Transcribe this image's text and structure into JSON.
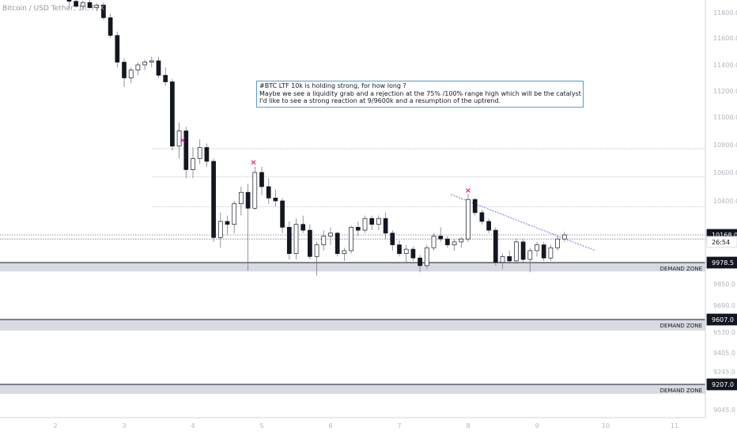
{
  "chart_data": {
    "type": "candlestick",
    "title": "Bitcoin / USD Tether, 1h, FTX",
    "x_axis_labels": [
      "2",
      "3",
      "4",
      "5",
      "6",
      "7",
      "8",
      "9",
      "10",
      "11"
    ],
    "y_axis_labels": [
      "11800.0",
      "11600.0",
      "11400.0",
      "11200.0",
      "11000.0",
      "10800.0",
      "10600.0",
      "10400.0",
      "9850.0",
      "9690.0",
      "9530.0",
      "9405.0",
      "9245.0",
      "9045.0"
    ],
    "ylim": [
      8960,
      11900
    ],
    "price_badges": [
      {
        "label": "10168.0",
        "value": 10168,
        "style": "dark"
      },
      {
        "label": "26:54",
        "value": 10120,
        "style": "light"
      },
      {
        "label": "9978.5",
        "value": 9978.5,
        "style": "dark"
      },
      {
        "label": "9607.0",
        "value": 9607,
        "style": "dark"
      },
      {
        "label": "9207.0",
        "value": 9207,
        "style": "dark"
      }
    ],
    "demand_zones": [
      {
        "label": "DEMAND ZONE",
        "top": 9978.5,
        "bottom": 9925
      },
      {
        "label": "DEMAND ZONE",
        "top": 9607,
        "bottom": 9540
      },
      {
        "label": "DEMAND ZONE",
        "top": 9207,
        "bottom": 9147
      }
    ],
    "horizontal_levels": [
      10771,
      10570,
      10361,
      10168,
      10140
    ],
    "x_markers": [
      {
        "x": 3.85,
        "price": 10835
      },
      {
        "x": 4.88,
        "price": 10675
      },
      {
        "x": 8.0,
        "price": 10475
      }
    ],
    "trendline": {
      "x1": 7.75,
      "y1": 10445,
      "x2": 9.85,
      "y2": 10060
    },
    "candles": [
      [
        2.2,
        11900,
        11930,
        11830,
        11890
      ],
      [
        2.3,
        11890,
        11910,
        11840,
        11850
      ],
      [
        2.4,
        11850,
        11895,
        11820,
        11880
      ],
      [
        2.5,
        11880,
        11905,
        11830,
        11840
      ],
      [
        2.6,
        11840,
        11875,
        11810,
        11860
      ],
      [
        2.7,
        11860,
        11880,
        11740,
        11760
      ],
      [
        2.8,
        11760,
        11790,
        11600,
        11620
      ],
      [
        2.9,
        11620,
        11650,
        11380,
        11420
      ],
      [
        3.0,
        11420,
        11450,
        11230,
        11300
      ],
      [
        3.1,
        11300,
        11380,
        11260,
        11360
      ],
      [
        3.2,
        11360,
        11420,
        11320,
        11400
      ],
      [
        3.3,
        11400,
        11440,
        11360,
        11420
      ],
      [
        3.4,
        11420,
        11460,
        11380,
        11430
      ],
      [
        3.5,
        11430,
        11460,
        11300,
        11320
      ],
      [
        3.6,
        11320,
        11380,
        11240,
        11270
      ],
      [
        3.7,
        11270,
        11290,
        10760,
        10790
      ],
      [
        3.8,
        10790,
        10960,
        10700,
        10900
      ],
      [
        3.9,
        10900,
        10930,
        10560,
        10620
      ],
      [
        4.0,
        10620,
        10780,
        10560,
        10700
      ],
      [
        4.1,
        10700,
        10840,
        10660,
        10780
      ],
      [
        4.2,
        10780,
        10810,
        10640,
        10680
      ],
      [
        4.3,
        10680,
        10700,
        10120,
        10150
      ],
      [
        4.4,
        10150,
        10320,
        10080,
        10260
      ],
      [
        4.5,
        10260,
        10300,
        10170,
        10240
      ],
      [
        4.6,
        10240,
        10400,
        10180,
        10380
      ],
      [
        4.7,
        10380,
        10500,
        10300,
        10460
      ],
      [
        4.8,
        10460,
        10520,
        9930,
        10350
      ],
      [
        4.9,
        10350,
        10640,
        10340,
        10600
      ],
      [
        5.0,
        10600,
        10640,
        10440,
        10500
      ],
      [
        5.1,
        10500,
        10560,
        10380,
        10420
      ],
      [
        5.2,
        10420,
        10480,
        10360,
        10400
      ],
      [
        5.3,
        10400,
        10420,
        10180,
        10220
      ],
      [
        5.4,
        10220,
        10260,
        10000,
        10040
      ],
      [
        5.5,
        10040,
        10280,
        10000,
        10240
      ],
      [
        5.6,
        10240,
        10300,
        10180,
        10200
      ],
      [
        5.7,
        10200,
        10240,
        10000,
        10020
      ],
      [
        5.8,
        10020,
        10120,
        9900,
        10100
      ],
      [
        5.9,
        10100,
        10200,
        10060,
        10160
      ],
      [
        6.0,
        10160,
        10220,
        10100,
        10180
      ],
      [
        6.1,
        10180,
        10190,
        10020,
        10040
      ],
      [
        6.2,
        10040,
        10080,
        9990,
        10060
      ],
      [
        6.3,
        10060,
        10230,
        10040,
        10220
      ],
      [
        6.4,
        10220,
        10260,
        10160,
        10200
      ],
      [
        6.5,
        10200,
        10300,
        10180,
        10280
      ],
      [
        6.6,
        10280,
        10300,
        10200,
        10240
      ],
      [
        6.7,
        10240,
        10300,
        10200,
        10280
      ],
      [
        6.8,
        10280,
        10320,
        10140,
        10180
      ],
      [
        6.9,
        10180,
        10200,
        10060,
        10100
      ],
      [
        7.0,
        10100,
        10130,
        10020,
        10040
      ],
      [
        7.1,
        10040,
        10100,
        9980,
        10070
      ],
      [
        7.2,
        10070,
        10090,
        9990,
        10010
      ],
      [
        7.3,
        10010,
        10030,
        9920,
        9960
      ],
      [
        7.4,
        9960,
        10100,
        9940,
        10080
      ],
      [
        7.5,
        10080,
        10180,
        10060,
        10160
      ],
      [
        7.6,
        10160,
        10220,
        10120,
        10140
      ],
      [
        7.7,
        10140,
        10160,
        10080,
        10100
      ],
      [
        7.8,
        10100,
        10140,
        10060,
        10120
      ],
      [
        7.9,
        10120,
        10150,
        10080,
        10140
      ],
      [
        8.0,
        10140,
        10450,
        10120,
        10410
      ],
      [
        8.1,
        10410,
        10420,
        10300,
        10320
      ],
      [
        8.2,
        10320,
        10340,
        10240,
        10260
      ],
      [
        8.3,
        10260,
        10280,
        10180,
        10200
      ],
      [
        8.4,
        10200,
        10220,
        9960,
        9980
      ],
      [
        8.5,
        9980,
        10040,
        9940,
        10020
      ],
      [
        8.6,
        10020,
        10060,
        9970,
        9990
      ],
      [
        8.7,
        9990,
        10140,
        9970,
        10120
      ],
      [
        8.8,
        10120,
        10140,
        9980,
        10000
      ],
      [
        8.9,
        10000,
        10080,
        9920,
        10060
      ],
      [
        9.0,
        10060,
        10120,
        10020,
        10100
      ],
      [
        9.1,
        10100,
        10120,
        9990,
        10010
      ],
      [
        9.2,
        10010,
        10100,
        9990,
        10080
      ],
      [
        9.3,
        10080,
        10160,
        10060,
        10140
      ],
      [
        9.4,
        10140,
        10190,
        10120,
        10168
      ]
    ]
  }
}
